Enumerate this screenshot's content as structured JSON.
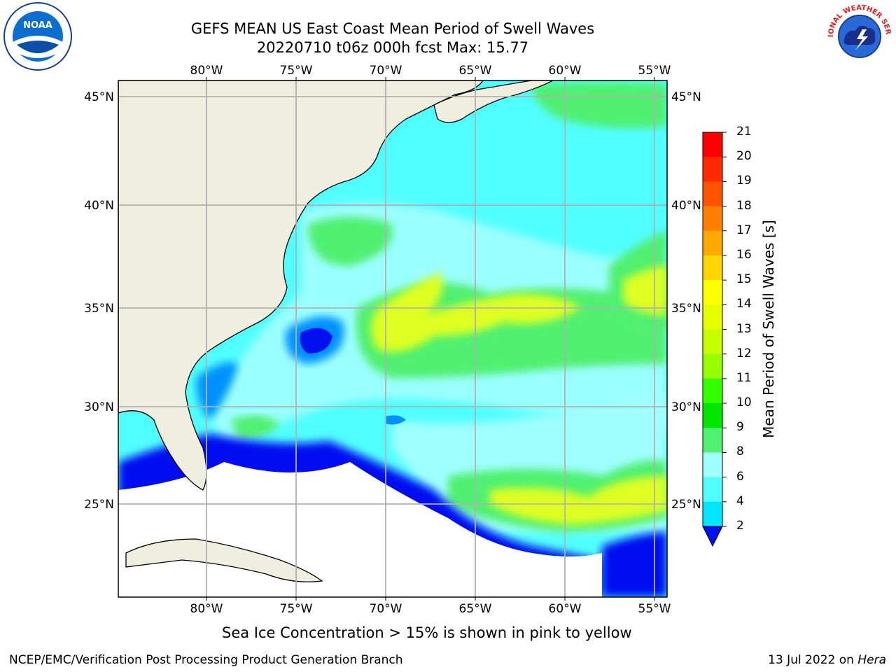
{
  "header": {
    "title_line1": "GEFS MEAN US East Coast Mean Period of Swell Waves",
    "title_line2": "20220710 t06z 000h fcst   Max: 15.77"
  },
  "map": {
    "lon_labels": [
      "80°W",
      "75°W",
      "70°W",
      "65°W",
      "60°W",
      "55°W"
    ],
    "lat_labels": [
      "45°N",
      "40°N",
      "35°N",
      "30°N",
      "25°N"
    ],
    "colors": {
      "land": "#efeedf",
      "grid": "#b0b0b0"
    }
  },
  "colorbar": {
    "label": "Mean Period of Swell Waves [s]",
    "ticks": [
      "21",
      "20",
      "19",
      "18",
      "17",
      "16",
      "15",
      "14",
      "13",
      "12",
      "11",
      "10",
      "9",
      "8",
      "6",
      "4",
      "2"
    ],
    "colors": [
      "#ff0000",
      "#ff2a00",
      "#ff5500",
      "#ff8000",
      "#ffaa00",
      "#ffd500",
      "#ffff00",
      "#e6ff00",
      "#c8ff00",
      "#96ff00",
      "#32ff00",
      "#00e600",
      "#50f070",
      "#a0ffff",
      "#50ffff",
      "#00e6ff",
      "#0090ff",
      "#0010f0"
    ]
  },
  "annotation": {
    "ice_note": "Sea Ice Concentration > 15% is shown in pink to yellow"
  },
  "footer": {
    "left": "NCEP/EMC/Verification Post Processing Product Generation Branch",
    "date": "13 Jul 2022 on",
    "machine": "Hera"
  },
  "logos": {
    "noaa": "NOAA",
    "nws": "NATIONAL WEATHER SERVICE"
  }
}
